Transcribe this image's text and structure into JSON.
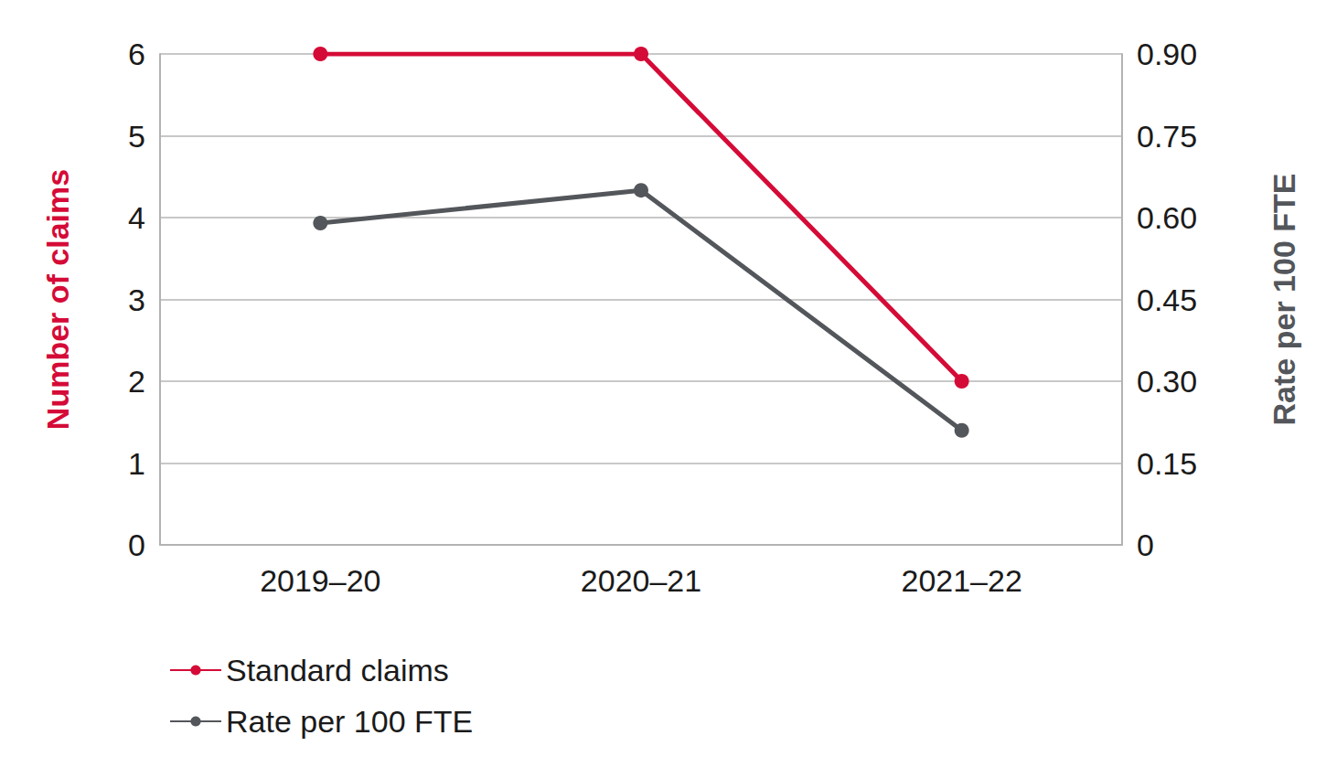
{
  "chart_data": {
    "type": "line",
    "categories": [
      "2019–20",
      "2020–21",
      "2021–22"
    ],
    "series": [
      {
        "name": "Standard claims",
        "color": "#d50b37",
        "values": [
          6,
          6,
          2
        ],
        "marker": "circle"
      },
      {
        "name": "Rate per 100 FTE",
        "color": "#53565a",
        "values": [
          0.59,
          0.65,
          0.21
        ],
        "marker": "circle",
        "axis": "y2"
      }
    ],
    "y_label": "Number of claims",
    "y2_label": "Rate per 100 FTE",
    "ylim": [
      0,
      6
    ],
    "yticks": [
      0,
      1,
      2,
      3,
      4,
      5,
      6
    ],
    "y2lim": [
      0,
      0.9
    ],
    "y2ticks": [
      0,
      0.15,
      {
        "value": 0.3,
        "label": "0.30"
      },
      0.45,
      {
        "value": 0.6,
        "label": "0.60"
      },
      0.75,
      {
        "value": 0.9,
        "label": "0.90"
      }
    ],
    "grid": true,
    "legend": "bottom-left"
  }
}
